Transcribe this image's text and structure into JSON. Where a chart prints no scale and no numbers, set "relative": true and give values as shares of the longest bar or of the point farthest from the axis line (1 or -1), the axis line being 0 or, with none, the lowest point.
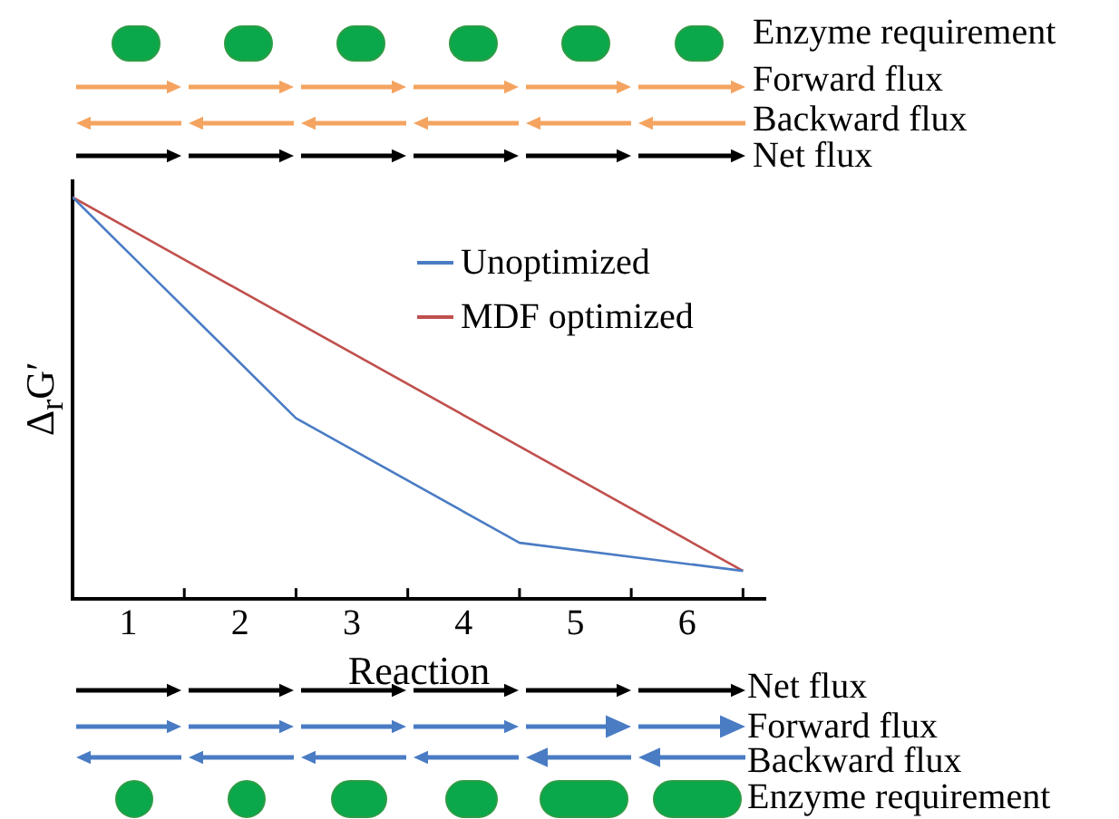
{
  "chart_data": {
    "type": "line",
    "relative": true,
    "xlabel": "Reaction",
    "ylabel": "Δ$_{r}$G′",
    "xlim": [
      0,
      6.2
    ],
    "xticks": [
      {
        "value": 0.5,
        "label": "1"
      },
      {
        "value": 1.5,
        "label": "2"
      },
      {
        "value": 2.5,
        "label": "3"
      },
      {
        "value": 3.5,
        "label": "4"
      },
      {
        "value": 4.5,
        "label": "5"
      },
      {
        "value": 5.5,
        "label": "6"
      }
    ],
    "series": [
      {
        "name": "Unoptimized",
        "color": "#4a7cc4",
        "x": [
          0,
          0.8,
          2,
          4,
          6
        ],
        "values": [
          1,
          0.78,
          0.45,
          0.14,
          0.07
        ]
      },
      {
        "name": "MDF optimized",
        "color": "#c0504d",
        "x": [
          0,
          6
        ],
        "values": [
          1,
          0.07
        ]
      }
    ],
    "legend": "top right",
    "grid": false,
    "marker": "none",
    "line_style": "solid",
    "annotations": [
      "Enzyme requirement",
      "Forward flux",
      "Backward flux",
      "Net flux",
      "Net flux",
      "Forward flux",
      "Backward flux",
      "Enzyme requirement"
    ]
  }
}
